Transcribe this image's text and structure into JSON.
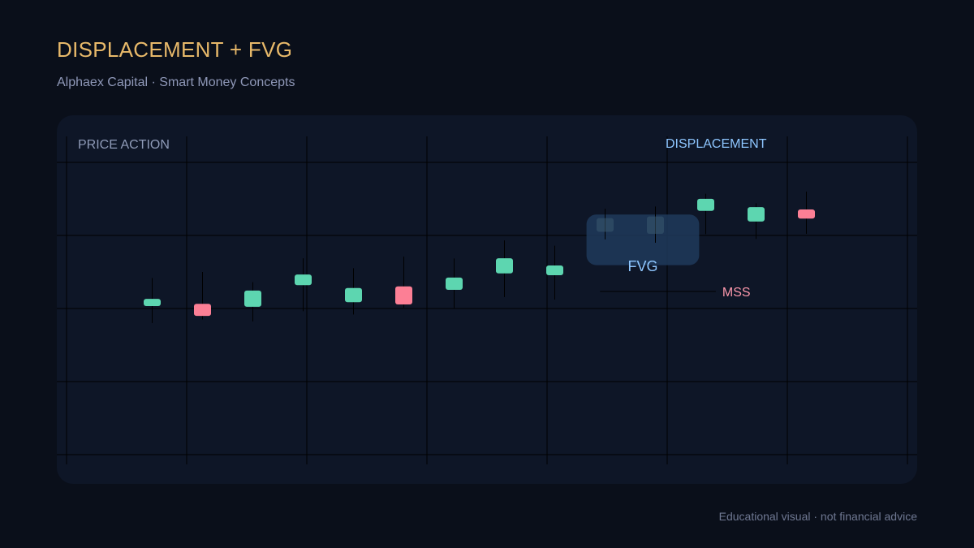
{
  "header": {
    "title": "DISPLACEMENT + FVG",
    "subtitle": "Alphaex Capital · Smart Money Concepts"
  },
  "footer": {
    "disclaimer": "Educational visual · not financial advice"
  },
  "colors": {
    "bullish": "#5dd6b0",
    "bearish": "#fc7f95",
    "title": "#e8b96a",
    "fvg_fill": "#1f3a5c",
    "fvg_label": "#8ec6ff",
    "displacement_label": "#8ec6ff",
    "mss_label": "#fc98ac",
    "panel_label": "#8f9bb8",
    "grid": "#000000"
  },
  "chart_data": {
    "type": "candlestick",
    "title": "",
    "xlabel": "",
    "ylabel": "",
    "grid": true,
    "ylim": [
      0,
      100
    ],
    "candles": [
      {
        "index": 1,
        "open": 36.5,
        "close": 40.5,
        "high": 52.1,
        "low": 27.1,
        "direction": "bull"
      },
      {
        "index": 2,
        "open": 37.7,
        "close": 31.0,
        "high": 55.4,
        "low": 29.1,
        "direction": "bear"
      },
      {
        "index": 3,
        "open": 36.1,
        "close": 45.1,
        "high": 49.8,
        "low": 27.9,
        "direction": "bull"
      },
      {
        "index": 4,
        "open": 48.1,
        "close": 54.0,
        "high": 63.0,
        "low": 33.6,
        "direction": "bull"
      },
      {
        "index": 5,
        "open": 38.6,
        "close": 46.5,
        "high": 57.5,
        "low": 31.8,
        "direction": "bull"
      },
      {
        "index": 6,
        "open": 47.4,
        "close": 37.4,
        "high": 63.9,
        "low": 35.6,
        "direction": "bear"
      },
      {
        "index": 7,
        "open": 45.5,
        "close": 52.3,
        "high": 62.9,
        "low": 35.4,
        "direction": "bull"
      },
      {
        "index": 8,
        "open": 54.6,
        "close": 63.0,
        "high": 72.9,
        "low": 41.5,
        "direction": "bull"
      },
      {
        "index": 9,
        "open": 53.6,
        "close": 59.0,
        "high": 70.0,
        "low": 40.1,
        "direction": "bull"
      },
      {
        "index": 10,
        "open": 77.7,
        "close": 85.3,
        "high": 90.5,
        "low": 73.5,
        "direction": "bull",
        "faded": true
      },
      {
        "index": 11,
        "open": 76.6,
        "close": 86.2,
        "high": 91.7,
        "low": 71.6,
        "direction": "bull",
        "faded": true
      },
      {
        "index": 12,
        "open": 89.3,
        "close": 96.0,
        "high": 98.8,
        "low": 76.4,
        "direction": "bull"
      },
      {
        "index": 13,
        "open": 83.4,
        "close": 91.4,
        "high": 93.5,
        "low": 73.7,
        "direction": "bull"
      },
      {
        "index": 14,
        "open": 90.1,
        "close": 85.0,
        "high": 100.0,
        "low": 76.6,
        "direction": "bear"
      }
    ],
    "annotations": {
      "panel_label": "PRICE ACTION",
      "displacement": "DISPLACEMENT",
      "fvg": {
        "label": "FVG",
        "from_candle": 9.8,
        "to_candle": 11.7,
        "low": 59.2,
        "high": 87.3
      },
      "mss": {
        "label": "MSS",
        "price": 44.6,
        "from_candle": 9.9,
        "to_candle": 12.2
      }
    }
  }
}
